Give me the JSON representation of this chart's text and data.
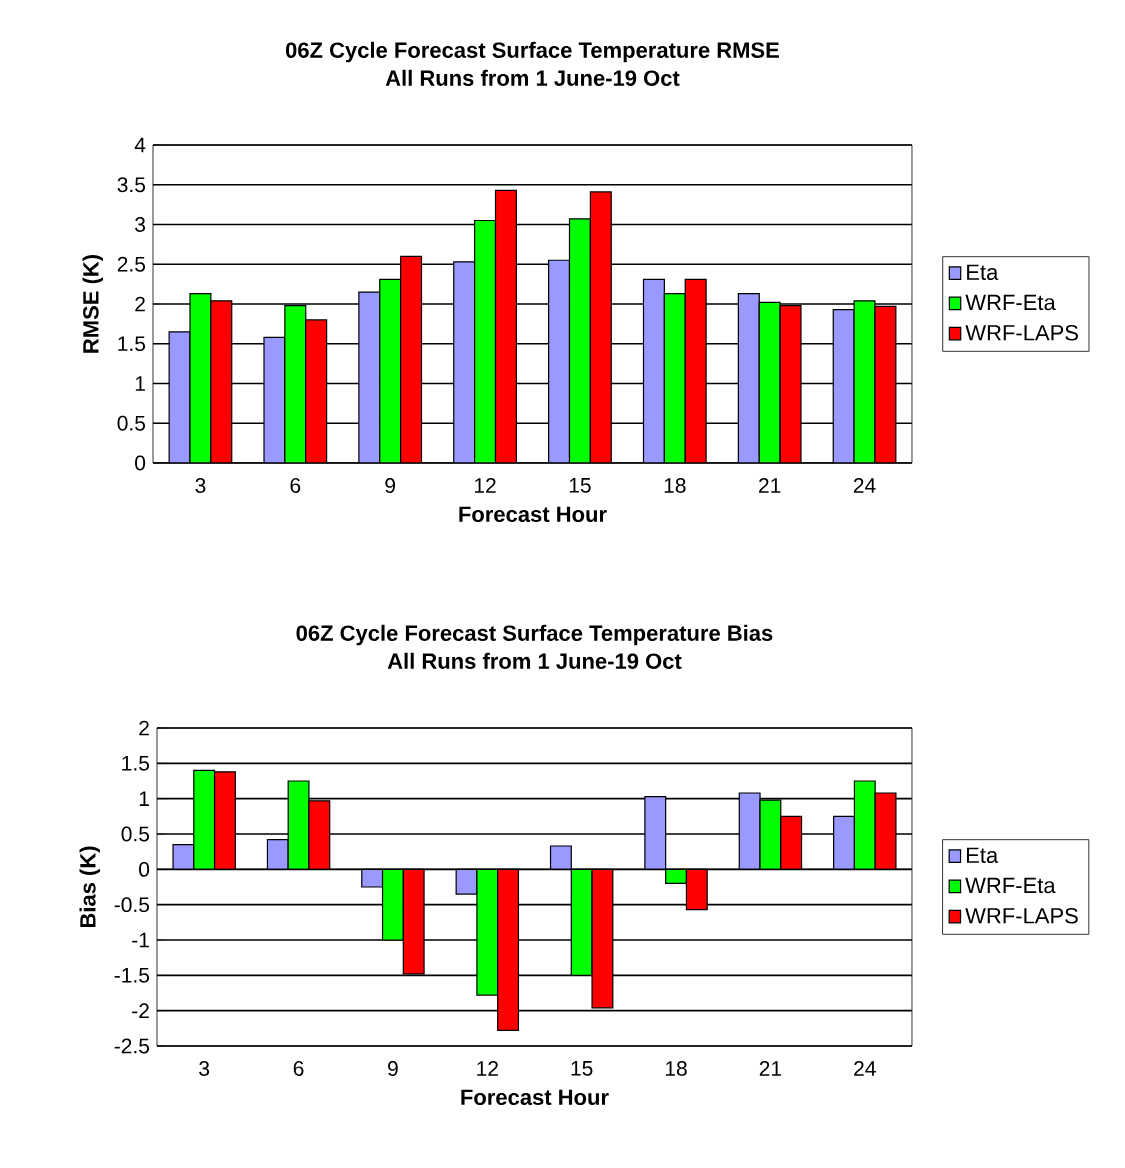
{
  "chart_data": [
    {
      "type": "bar",
      "title": "06Z Cycle Forecast Surface Temperature RMSE",
      "subtitle": "All Runs from 1 June-19 Oct",
      "xlabel": "Forecast Hour",
      "ylabel": "RMSE (K)",
      "categories": [
        "3",
        "6",
        "9",
        "12",
        "15",
        "18",
        "21",
        "24"
      ],
      "series": [
        {
          "name": "Eta",
          "color": "#9999ff",
          "values": [
            1.65,
            1.58,
            2.15,
            2.53,
            2.55,
            2.31,
            2.13,
            1.93
          ]
        },
        {
          "name": "WRF-Eta",
          "color": "#00ff00",
          "values": [
            2.13,
            1.98,
            2.31,
            3.05,
            3.07,
            2.13,
            2.02,
            2.04
          ]
        },
        {
          "name": "WRF-LAPS",
          "color": "#ff0000",
          "values": [
            2.04,
            1.8,
            2.6,
            3.43,
            3.41,
            2.31,
            1.98,
            1.97
          ]
        }
      ],
      "ylim": [
        0,
        4
      ],
      "yticks": [
        0,
        0.5,
        1,
        1.5,
        2,
        2.5,
        3,
        3.5,
        4
      ],
      "grid": "y",
      "legend": "right"
    },
    {
      "type": "bar",
      "title": "06Z Cycle Forecast Surface Temperature Bias",
      "subtitle": "All Runs from 1 June-19 Oct",
      "xlabel": "Forecast Hour",
      "ylabel": "Bias (K)",
      "categories": [
        "3",
        "6",
        "9",
        "12",
        "15",
        "18",
        "21",
        "24"
      ],
      "series": [
        {
          "name": "Eta",
          "color": "#9999ff",
          "values": [
            0.35,
            0.42,
            -0.25,
            -0.35,
            0.33,
            1.03,
            1.08,
            0.75
          ]
        },
        {
          "name": "WRF-Eta",
          "color": "#00ff00",
          "values": [
            1.4,
            1.25,
            -1.0,
            -1.78,
            -1.5,
            -0.2,
            0.98,
            1.25
          ]
        },
        {
          "name": "WRF-LAPS",
          "color": "#ff0000",
          "values": [
            1.38,
            0.97,
            -1.48,
            -2.28,
            -1.96,
            -0.57,
            0.75,
            1.08
          ]
        }
      ],
      "ylim": [
        -2.5,
        2
      ],
      "yticks": [
        -2.5,
        -2,
        -1.5,
        -1,
        -0.5,
        0,
        0.5,
        1,
        1.5,
        2
      ],
      "grid": "y",
      "legend": "right"
    }
  ]
}
